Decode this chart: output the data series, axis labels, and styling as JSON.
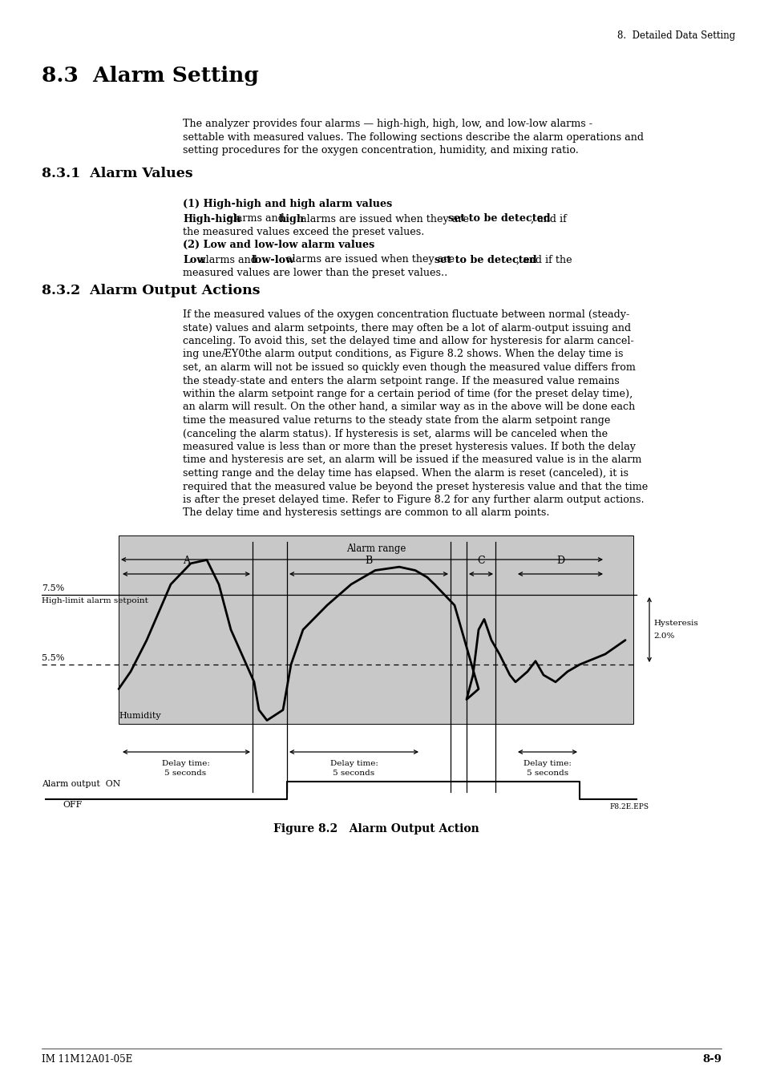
{
  "page_header": "8.  Detailed Data Setting",
  "section_title": "8.3  Alarm Setting",
  "intro_text_line1": "The analyzer provides four alarms — high-high, high, low, and low-low alarms -",
  "intro_text_line2": "settable with measured values. The following sections describe the alarm operations and",
  "intro_text_line3": "setting procedures for the oxygen concentration, humidity, and mixing ratio.",
  "subsection1_title": "8.3.1  Alarm Values",
  "para1_title": "(1) High-high and high alarm values",
  "para1_line1_parts": [
    {
      "text": "High-high",
      "bold": true
    },
    {
      "text": " alarms and ",
      "bold": false
    },
    {
      "text": "high",
      "bold": true
    },
    {
      "text": " alarms are issued when they are ",
      "bold": false
    },
    {
      "text": "set to be detected",
      "bold": true
    },
    {
      "text": ", and if",
      "bold": false
    }
  ],
  "para1_line2": "the measured values exceed the preset values.",
  "para2_title": "(2) Low and low-low alarm values",
  "para2_line1_parts": [
    {
      "text": "Low",
      "bold": true
    },
    {
      "text": " alarms and ",
      "bold": false
    },
    {
      "text": "low-low",
      "bold": true
    },
    {
      "text": " alarms are issued when they are ",
      "bold": false
    },
    {
      "text": "set to be detected",
      "bold": true
    },
    {
      "text": ", and if the",
      "bold": false
    }
  ],
  "para2_line2": "measured values are lower than the preset values..",
  "subsection2_title": "8.3.2  Alarm Output Actions",
  "body_lines": [
    "If the measured values of the oxygen concentration fluctuate between normal (steady-",
    "state) values and alarm setpoints, there may often be a lot of alarm-output issuing and",
    "canceling. To avoid this, set the delayed time and allow for hysteresis for alarm cancel-",
    "ing uneÆY0the alarm output conditions, as Figure 8.2 shows. When the delay time is",
    "set, an alarm will not be issued so quickly even though the measured value differs from",
    "the steady-state and enters the alarm setpoint range. If the measured value remains",
    "within the alarm setpoint range for a certain period of time (for the preset delay time),",
    "an alarm will result. On the other hand, a similar way as in the above will be done each",
    "time the measured value returns to the steady state from the alarm setpoint range",
    "(canceling the alarm status). If hysteresis is set, alarms will be canceled when the",
    "measured value is less than or more than the preset hysteresis values. If both the delay",
    "time and hysteresis are set, an alarm will be issued if the measured value is in the alarm",
    "setting range and the delay time has elapsed. When the alarm is reset (canceled), it is",
    "required that the measured value be beyond the preset hysteresis value and that the time",
    "is after the preset delayed time. Refer to Figure 8.2 for any further alarm output actions.",
    "The delay time and hysteresis settings are common to all alarm points."
  ],
  "figure_caption": "Figure 8.2   Alarm Output Action",
  "footer_left": "IM 11M12A01-05E",
  "footer_right": "8-9",
  "bg_color": "#ffffff",
  "text_color": "#000000",
  "gray_bg": "#c8c8c8"
}
